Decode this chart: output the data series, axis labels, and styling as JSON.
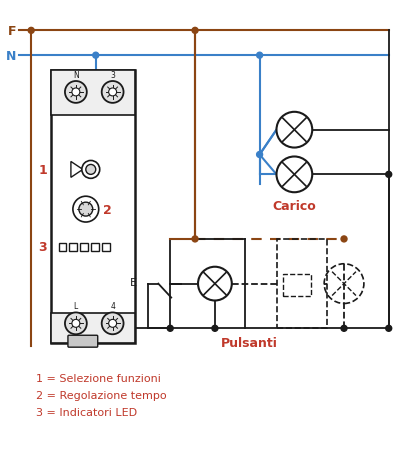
{
  "bg_color": "#ffffff",
  "red_color": "#c0392b",
  "brown_color": "#8B4513",
  "blue_color": "#3a80c8",
  "black_color": "#1a1a1a",
  "label_F": "F",
  "label_N": "N",
  "label_1": "1",
  "label_2": "2",
  "label_3": "3",
  "label_Carico": "Carico",
  "label_Pulsanti": "Pulsanti",
  "legend1": "1 = Selezione funzioni",
  "legend2": "2 = Regolazione tempo",
  "legend3": "3 = Indicatori LED"
}
